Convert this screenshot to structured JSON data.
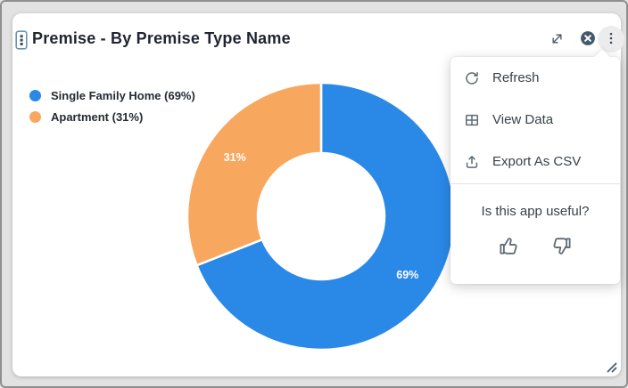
{
  "widget": {
    "title": "Premise - By Premise Type Name"
  },
  "legend": {
    "items": [
      {
        "label": "Single Family Home (69%)",
        "color": "#2a88e7"
      },
      {
        "label": "Apartment (31%)",
        "color": "#f8a75e"
      }
    ]
  },
  "chart_data": {
    "type": "pie",
    "donut": true,
    "title": "Premise - By Premise Type Name",
    "categories": [
      "Single Family Home",
      "Apartment"
    ],
    "values": [
      69,
      31
    ],
    "unit": "%",
    "slice_labels": [
      "69%",
      "31%"
    ],
    "colors": [
      "#2a88e7",
      "#f8a75e"
    ],
    "start_angle_deg": 0,
    "direction": "clockwise",
    "inner_radius_ratio": 0.47,
    "legend_position": "top-left",
    "legend_entries": [
      "Single Family Home (69%)",
      "Apartment (31%)"
    ],
    "slice_label_color": "#ffffff"
  },
  "menu": {
    "items": [
      {
        "label": "Refresh",
        "icon": "refresh-icon"
      },
      {
        "label": "View Data",
        "icon": "table-icon"
      },
      {
        "label": "Export As CSV",
        "icon": "upload-icon"
      }
    ],
    "feedback": {
      "question": "Is this app useful?",
      "thumb_up_icon": "thumb-up-icon",
      "thumb_down_icon": "thumb-down-icon"
    }
  },
  "icons": {
    "header": [
      "drag-handle-icon",
      "expand-icon",
      "close-icon",
      "kebab-menu-icon"
    ],
    "resize": "resize-grip-icon"
  }
}
